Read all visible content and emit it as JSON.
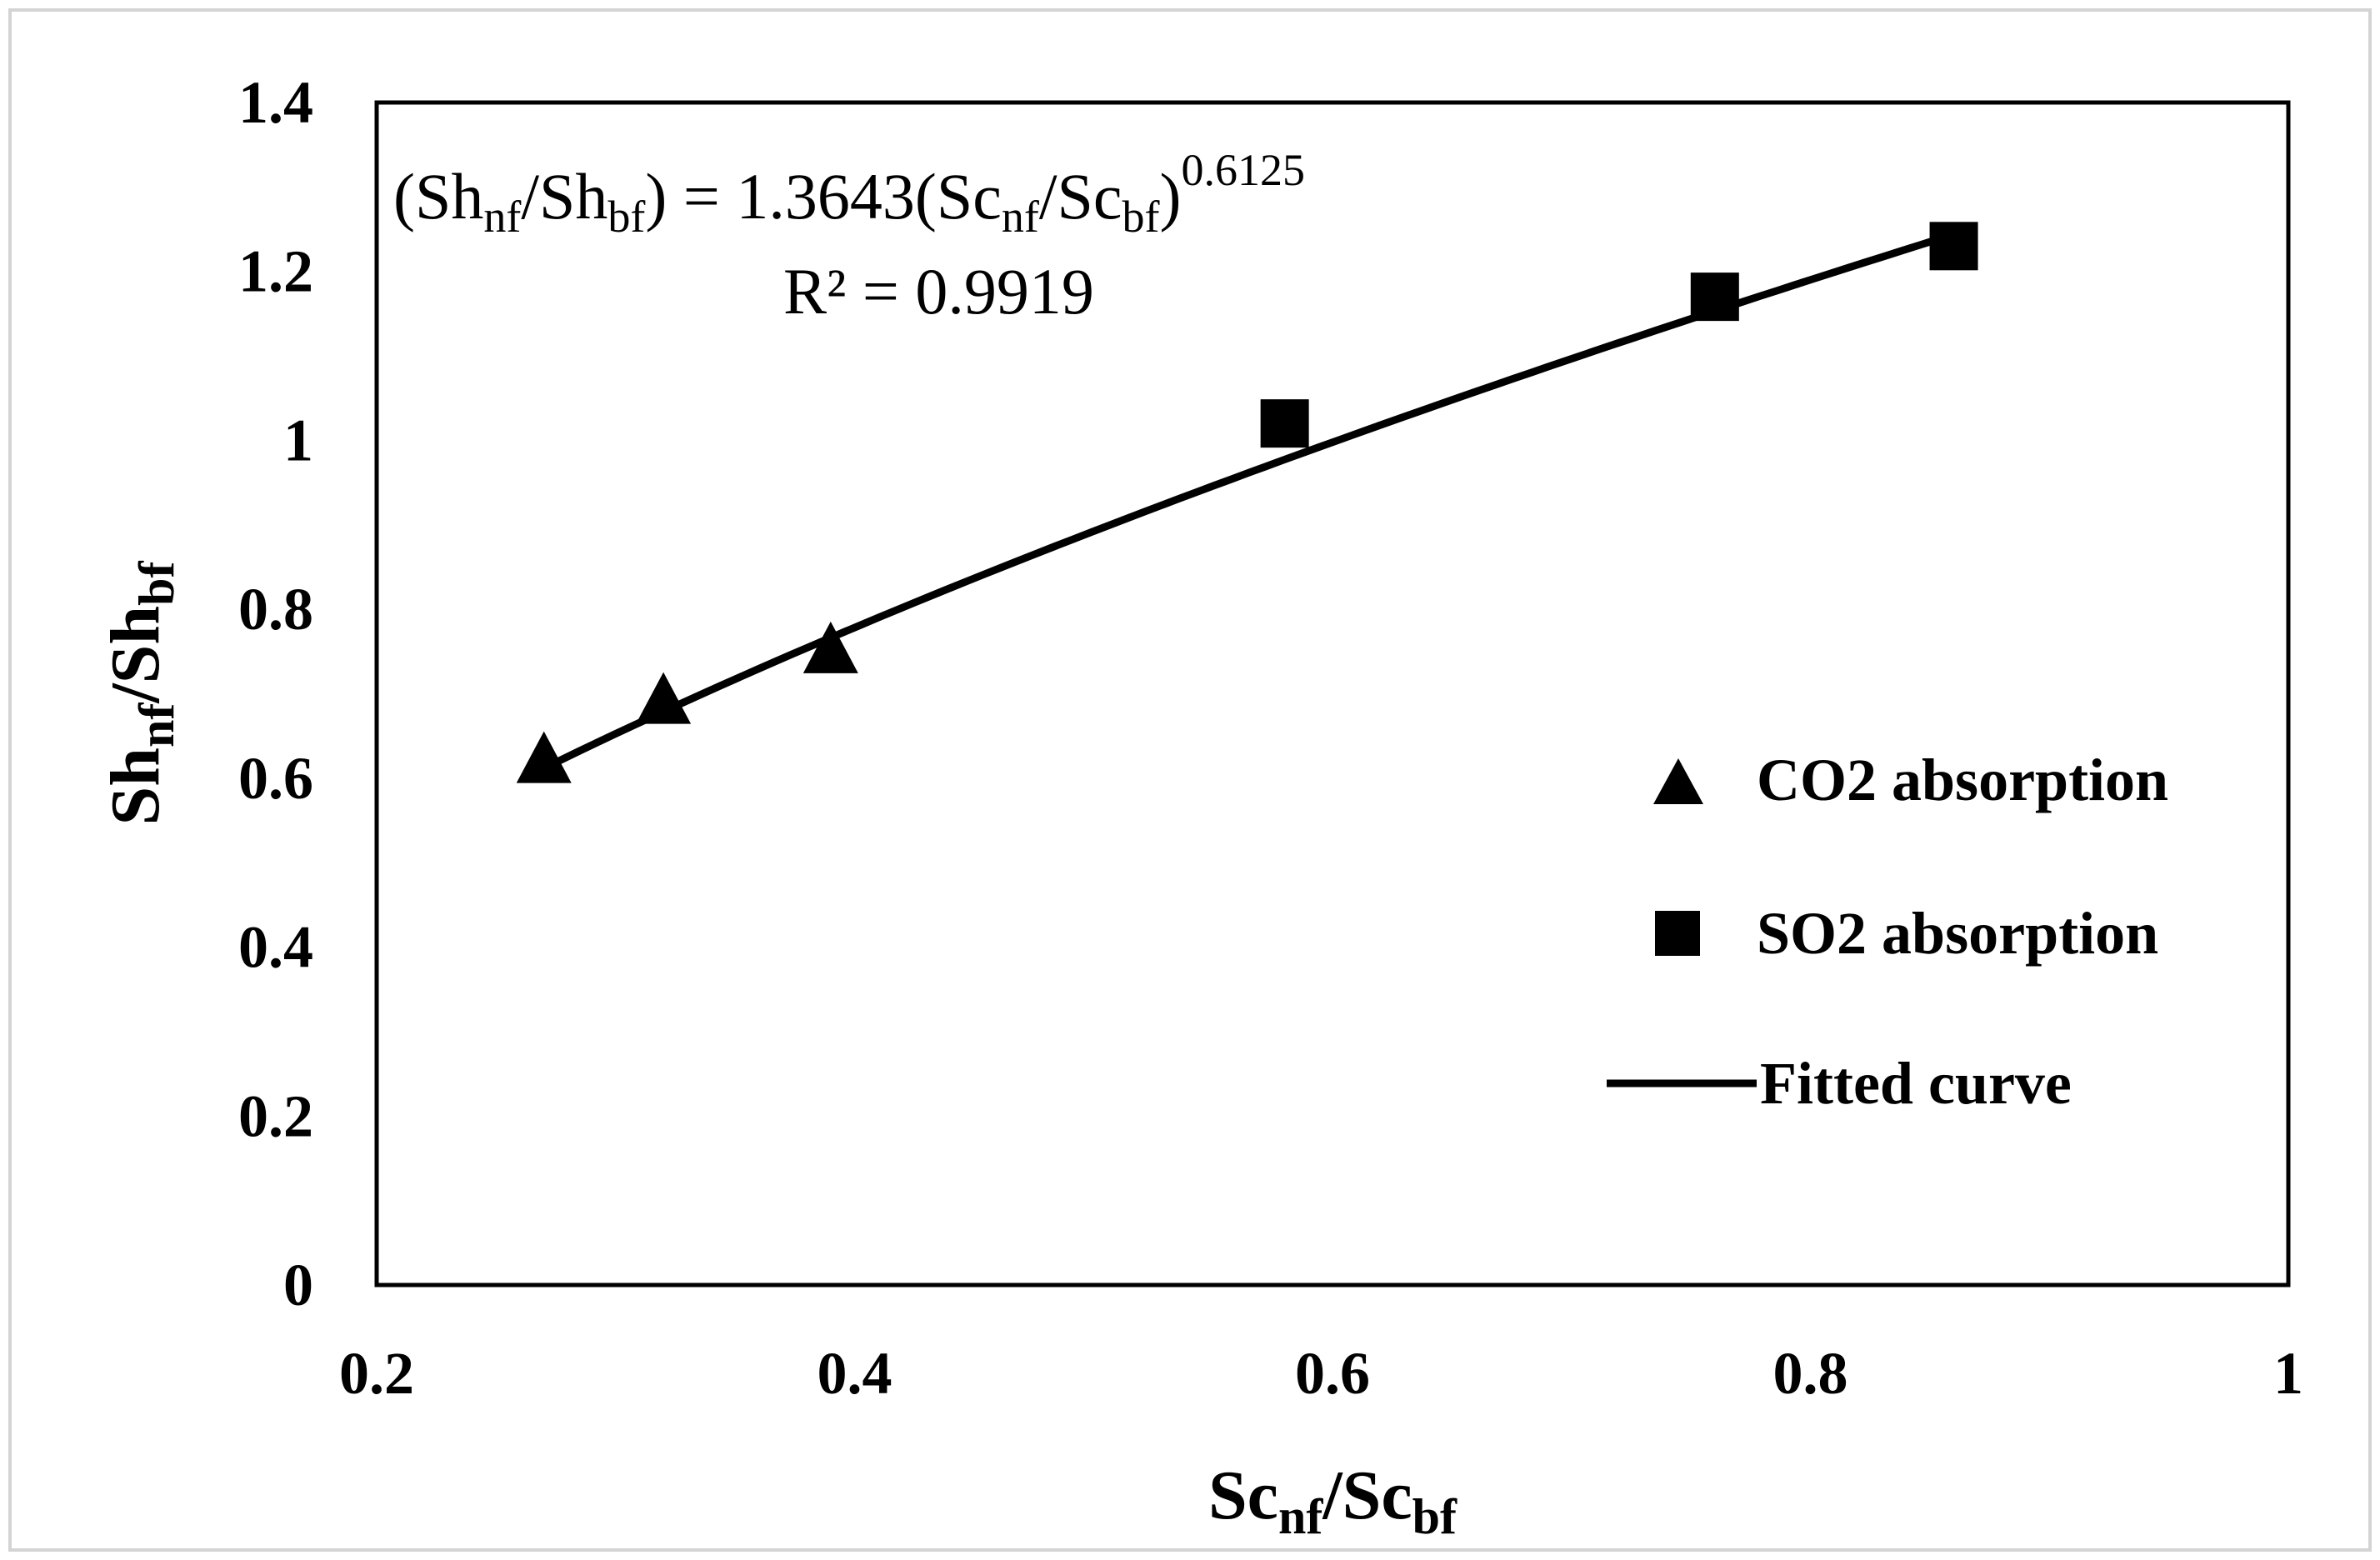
{
  "chart_data": {
    "type": "scatter",
    "title": "",
    "xlabel": {
      "main": "Sc",
      "sub1": "nf",
      "mid": "/Sc",
      "sub2": "bf"
    },
    "ylabel": {
      "main": "Sh",
      "sub1": "nf",
      "mid": "/Sh",
      "sub2": "bf"
    },
    "xlim": [
      0.2,
      1.0
    ],
    "ylim": [
      0,
      1.4
    ],
    "grid": false,
    "x_ticks": [
      0.2,
      0.4,
      0.6,
      0.8,
      1.0
    ],
    "x_tick_labels": [
      "0.2",
      "0.4",
      "0.6",
      "0.8",
      "1"
    ],
    "y_ticks": [
      0,
      0.2,
      0.4,
      0.6,
      0.8,
      1.0,
      1.2,
      1.4
    ],
    "y_tick_labels": [
      "0",
      "0.2",
      "0.4",
      "0.6",
      "0.8",
      "1",
      "1.2",
      "1.4"
    ],
    "series": [
      {
        "name": "CO2 absorption",
        "marker": "triangle",
        "x": [
          0.27,
          0.32,
          0.39
        ],
        "y": [
          0.62,
          0.69,
          0.75
        ]
      },
      {
        "name": "SO2 absorption",
        "marker": "square",
        "x": [
          0.58,
          0.76,
          0.86
        ],
        "y": [
          1.02,
          1.17,
          1.23
        ]
      }
    ],
    "fit": {
      "name": "Fitted curve",
      "coefficient": 1.3643,
      "exponent": 0.6125,
      "x_range": [
        0.27,
        0.86
      ],
      "equation": {
        "open": "(Sh",
        "sub1": "nf",
        "t1": "/Sh",
        "sub2": "bf",
        "t2": ") = 1.3643(Sc",
        "sub3": "nf",
        "t3": "/Sc",
        "sub4": "bf",
        "t4": ")",
        "sup": "0.6125"
      },
      "r2_text": "R² = 0.9919"
    },
    "legend_position": "right",
    "legend": [
      "CO2 absorption",
      "SO2 absorption",
      "Fitted curve"
    ]
  }
}
